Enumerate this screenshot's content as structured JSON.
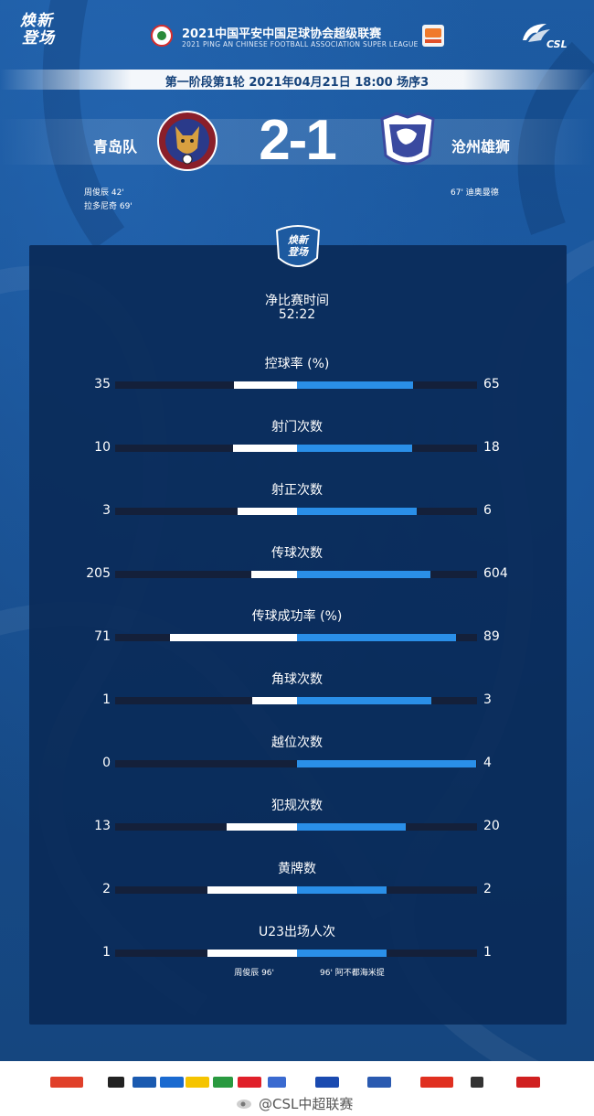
{
  "header": {
    "brand_logo_line1": "焕新",
    "brand_logo_line2": "登场",
    "league_title": "2021中国平安中国足球协会超级联赛",
    "league_subtitle": "2021 PING AN CHINESE FOOTBALL ASSOCIATION SUPER LEAGUE",
    "csl_logo_text": "CSL"
  },
  "match": {
    "round_info": "第一阶段第1轮  2021年04月21日 18:00 场序3",
    "home_team": "青岛队",
    "away_team": "沧州雄狮",
    "score": "2-1",
    "home_scorers": [
      "周俊辰  42'",
      "拉多尼奇  69'"
    ],
    "away_scorers": [
      "67'  迪奥曼德"
    ]
  },
  "panel_badge": {
    "line1": "焕新",
    "line2": "登场"
  },
  "net_time": {
    "label": "净比赛时间",
    "value": "52:22"
  },
  "stats": [
    {
      "label": "控球率 (%)",
      "home": "35",
      "away": "65",
      "home_fraction": 0.35,
      "away_fraction": 0.65
    },
    {
      "label": "射门次数",
      "home": "10",
      "away": "18",
      "home_fraction": 0.357,
      "away_fraction": 0.643
    },
    {
      "label": "射正次数",
      "home": "3",
      "away": "6",
      "home_fraction": 0.333,
      "away_fraction": 0.667
    },
    {
      "label": "传球次数",
      "home": "205",
      "away": "604",
      "home_fraction": 0.253,
      "away_fraction": 0.747
    },
    {
      "label": "传球成功率 (%)",
      "home": "71",
      "away": "89",
      "home_fraction": 0.71,
      "away_fraction": 0.89
    },
    {
      "label": "角球次数",
      "home": "1",
      "away": "3",
      "home_fraction": 0.25,
      "away_fraction": 0.75
    },
    {
      "label": "越位次数",
      "home": "0",
      "away": "4",
      "home_fraction": 0.0,
      "away_fraction": 1.0
    },
    {
      "label": "犯规次数",
      "home": "13",
      "away": "20",
      "home_fraction": 0.394,
      "away_fraction": 0.606
    },
    {
      "label": "黄牌数",
      "home": "2",
      "away": "2",
      "home_fraction": 0.5,
      "away_fraction": 0.5
    },
    {
      "label": "U23出场人次",
      "home": "1",
      "away": "1",
      "home_fraction": 0.5,
      "away_fraction": 0.5
    }
  ],
  "u23_notes": {
    "home": "周俊辰   96'",
    "away": "96'   阿不都海米提"
  },
  "footer": {
    "watermark": "@CSL中超联赛"
  },
  "colors": {
    "background": "#1a4c8a",
    "panel": "#0a2a58",
    "home_bar": "#ffffff",
    "away_bar": "#2a8fe8",
    "track": "#14203a"
  }
}
